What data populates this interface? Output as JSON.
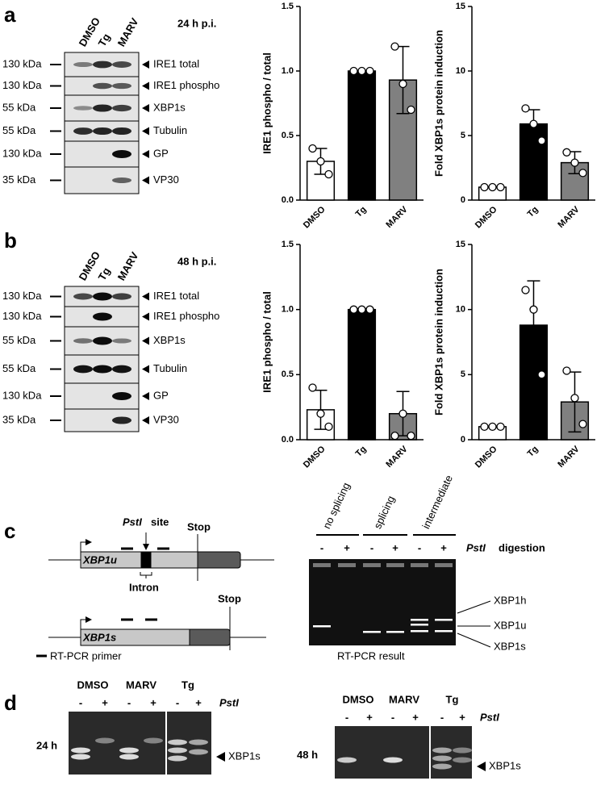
{
  "figure": {
    "a": {
      "letter": "a",
      "time": "24 h p.i.",
      "lanes": [
        "DMSO",
        "Tg",
        "MARV"
      ],
      "markers": [
        "130 kDa",
        "130 kDa",
        "55 kDa",
        "55 kDa",
        "130 kDa",
        "35 kDa"
      ],
      "bands": [
        "IRE1 total",
        "IRE1 phospho",
        "XBP1s",
        "Tubulin",
        "GP",
        "VP30"
      ]
    },
    "b": {
      "letter": "b",
      "time": "48 h p.i.",
      "lanes": [
        "DMSO",
        "Tg",
        "MARV"
      ],
      "markers": [
        "130 kDa",
        "130 kDa",
        "55 kDa",
        "55 kDa",
        "130 kDa",
        "35 kDa"
      ],
      "bands": [
        "IRE1 total",
        "IRE1 phospho",
        "XBP1s",
        "Tubulin",
        "GP",
        "VP30"
      ]
    },
    "c": {
      "letter": "c",
      "pst_site": "PstI",
      "site_word": "site",
      "stop_u": "Stop",
      "xbp1u": "XBP1u",
      "intron": "Intron",
      "stop_s": "Stop",
      "xbp1s": "XBP1s",
      "primer": "RT-PCR primer",
      "gel_headers": [
        "no splicing",
        "splicing",
        "intermediate"
      ],
      "signs": [
        "-",
        "+",
        "-",
        "+",
        "-",
        "+"
      ],
      "enzyme": "PstI",
      "digestion": "digestion",
      "gel_bands": [
        "XBP1h",
        "XBP1u",
        "XBP1s"
      ],
      "gel_caption": "RT-PCR result"
    },
    "d": {
      "letter": "d",
      "gels": [
        {
          "time": "24 h",
          "groups": [
            "DMSO",
            "MARV",
            "Tg"
          ],
          "signs": [
            "-",
            "+",
            "-",
            "+",
            "-",
            "+"
          ],
          "enzyme": "PstI",
          "band": "XBP1s"
        },
        {
          "time": "48 h",
          "groups": [
            "DMSO",
            "MARV",
            "Tg"
          ],
          "signs": [
            "-",
            "+",
            "-",
            "+",
            "-",
            "+"
          ],
          "enzyme": "PstI",
          "band": "XBP1s"
        }
      ]
    }
  },
  "chart_data": [
    {
      "type": "bar",
      "ylabel": "IRE1 phospho / total",
      "categories": [
        "DMSO",
        "Tg",
        "MARV"
      ],
      "values": [
        0.3,
        1.0,
        0.93
      ],
      "errors": [
        0.1,
        0,
        0.26
      ],
      "points": [
        [
          0.4,
          0.3,
          0.2
        ],
        [
          1,
          1,
          1
        ],
        [
          1.19,
          0.9,
          0.7
        ]
      ],
      "colors": [
        "#ffffff",
        "#000000",
        "#808080"
      ],
      "ylim": [
        0,
        1.5
      ],
      "yticks": [
        {
          "value": 0,
          "label": "0.0"
        },
        0.5,
        {
          "value": 1,
          "label": "1.0"
        },
        1.5
      ]
    },
    {
      "type": "bar",
      "ylabel": "Fold XBP1s protein induction",
      "categories": [
        "DMSO",
        "Tg",
        "MARV"
      ],
      "values": [
        1,
        5.9,
        2.9
      ],
      "errors": [
        0,
        1.1,
        0.85
      ],
      "points": [
        [
          1,
          1,
          1
        ],
        [
          7.1,
          5.9,
          4.6
        ],
        [
          3.7,
          2.9,
          2.1
        ]
      ],
      "colors": [
        "#ffffff",
        "#000000",
        "#808080"
      ],
      "ylim": [
        0,
        15
      ],
      "yticks": [
        0,
        5,
        10,
        15
      ]
    },
    {
      "type": "bar",
      "ylabel": "IRE1 phospho / total",
      "categories": [
        "DMSO",
        "Tg",
        "MARV"
      ],
      "values": [
        0.23,
        1.0,
        0.2
      ],
      "errors": [
        0.15,
        0,
        0.17
      ],
      "points": [
        [
          0.4,
          0.2,
          0.1
        ],
        [
          1,
          1,
          1
        ],
        [
          0.03,
          0.2,
          0.03
        ]
      ],
      "colors": [
        "#ffffff",
        "#000000",
        "#808080"
      ],
      "ylim": [
        0,
        1.5
      ],
      "yticks": [
        {
          "value": 0,
          "label": "0.0"
        },
        0.5,
        {
          "value": 1,
          "label": "1.0"
        },
        1.5
      ]
    },
    {
      "type": "bar",
      "ylabel": "Fold XBP1s protein induction",
      "categories": [
        "DMSO",
        "Tg",
        "MARV"
      ],
      "values": [
        1,
        8.8,
        2.9
      ],
      "errors": [
        0,
        3.4,
        2.3
      ],
      "points": [
        [
          1,
          1,
          1
        ],
        [
          11.5,
          10,
          5
        ],
        [
          5.3,
          3.2,
          1.2
        ]
      ],
      "colors": [
        "#ffffff",
        "#000000",
        "#808080"
      ],
      "ylim": [
        0,
        15
      ],
      "yticks": [
        0,
        5,
        10,
        15
      ]
    }
  ]
}
